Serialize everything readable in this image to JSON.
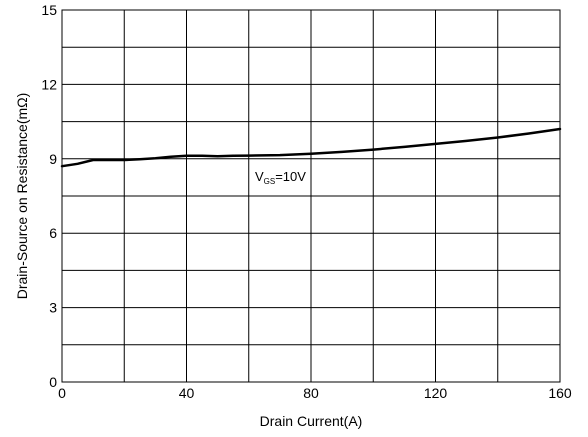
{
  "chart_data": {
    "type": "line",
    "title": "",
    "xlabel": "Drain Current(A)",
    "ylabel": "Drain-Source on Resistance(mΩ)",
    "xlim": [
      0,
      160
    ],
    "ylim": [
      0,
      15
    ],
    "x_ticks": [
      "0",
      "40",
      "80",
      "120",
      "160"
    ],
    "y_ticks": [
      "0",
      "3",
      "6",
      "9",
      "12",
      "15"
    ],
    "x_minor_step": 20,
    "y_minor_step": 1.5,
    "grid": true,
    "annotation": {
      "main": "V",
      "sub": "GS",
      "rest": "=10V",
      "x": 62,
      "y": 8.1
    },
    "series": [
      {
        "color": "#000000",
        "x": [
          0,
          5,
          10,
          15,
          20,
          25,
          30,
          35,
          40,
          45,
          50,
          55,
          60,
          70,
          80,
          90,
          100,
          110,
          120,
          130,
          140,
          150,
          160
        ],
        "y": [
          8.7,
          8.8,
          8.95,
          8.95,
          8.95,
          8.98,
          9.02,
          9.08,
          9.12,
          9.12,
          9.1,
          9.12,
          9.13,
          9.15,
          9.2,
          9.28,
          9.37,
          9.48,
          9.6,
          9.72,
          9.86,
          10.02,
          10.2
        ]
      }
    ]
  }
}
